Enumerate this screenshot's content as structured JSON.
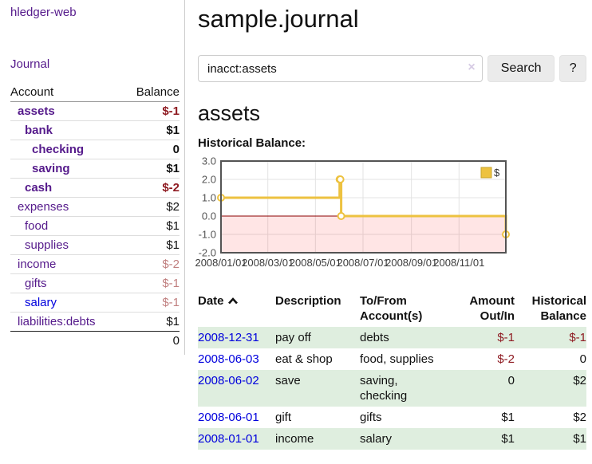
{
  "sidebar": {
    "brand": "hledger-web",
    "journal_link": "Journal",
    "accounts_table": {
      "headers": {
        "account": "Account",
        "balance": "Balance"
      },
      "rows": [
        {
          "name": "assets",
          "depth": 0,
          "balance": "$-1",
          "in_filter": true,
          "balance_class": "neg-strong",
          "link_blue": false
        },
        {
          "name": "bank",
          "depth": 1,
          "balance": "$1",
          "in_filter": true,
          "balance_class": "",
          "link_blue": false
        },
        {
          "name": "checking",
          "depth": 2,
          "balance": "0",
          "in_filter": true,
          "balance_class": "",
          "link_blue": false
        },
        {
          "name": "saving",
          "depth": 2,
          "balance": "$1",
          "in_filter": true,
          "balance_class": "",
          "link_blue": false
        },
        {
          "name": "cash",
          "depth": 1,
          "balance": "$-2",
          "in_filter": true,
          "balance_class": "neg-strong",
          "link_blue": false
        },
        {
          "name": "expenses",
          "depth": 0,
          "balance": "$2",
          "in_filter": false,
          "balance_class": "",
          "link_blue": false
        },
        {
          "name": "food",
          "depth": 1,
          "balance": "$1",
          "in_filter": false,
          "balance_class": "",
          "link_blue": false
        },
        {
          "name": "supplies",
          "depth": 1,
          "balance": "$1",
          "in_filter": false,
          "balance_class": "",
          "link_blue": false
        },
        {
          "name": "income",
          "depth": 0,
          "balance": "$-2",
          "in_filter": false,
          "balance_class": "neg-faded",
          "link_blue": false
        },
        {
          "name": "gifts",
          "depth": 1,
          "balance": "$-1",
          "in_filter": false,
          "balance_class": "neg-faded",
          "link_blue": false
        },
        {
          "name": "salary",
          "depth": 1,
          "balance": "$-1",
          "in_filter": false,
          "balance_class": "neg-faded",
          "link_blue": true
        },
        {
          "name": "liabilities:debts",
          "depth": 0,
          "balance": "$1",
          "in_filter": false,
          "balance_class": "",
          "link_blue": false
        }
      ],
      "total": "0"
    }
  },
  "main": {
    "title": "sample.journal",
    "search": {
      "value": "inacct:assets",
      "clear_icon": "×",
      "button_label": "Search",
      "help_label": "?"
    },
    "account_heading": "assets",
    "chart_label": "Historical Balance:"
  },
  "chart_data": {
    "type": "line",
    "step": true,
    "title": "Historical Balance",
    "series": [
      {
        "name": "$",
        "color": "#edc240",
        "points": [
          [
            "2008-01-01",
            1
          ],
          [
            "2008-06-01",
            2
          ],
          [
            "2008-06-02",
            2
          ],
          [
            "2008-06-03",
            0
          ],
          [
            "2008-12-31",
            -1
          ]
        ]
      }
    ],
    "x_range": [
      "2008-01-01",
      "2008-12-31"
    ],
    "ylim": [
      -2,
      3
    ],
    "yticks": [
      "3.0",
      "2.0",
      "1.0",
      "0.0",
      "-1.0",
      "-2.0"
    ],
    "xticks": [
      "2008/01/01",
      "2008/03/01",
      "2008/05/01",
      "2008/07/01",
      "2008/09/01",
      "2008/11/01"
    ],
    "grid": true,
    "legend_position": "top-right",
    "legend_label": "$",
    "colors": {
      "line": "#edc240",
      "marker_fill": "#ffffff",
      "negative_region_fill": "rgba(255,0,0,0.10)",
      "zero_line": "#8b0000",
      "gridline": "#e3e3e3",
      "border": "#545454",
      "tick_text": "#545454"
    }
  },
  "register": {
    "headers": [
      {
        "label": "Date",
        "sorted": "asc"
      },
      {
        "label": "Description"
      },
      {
        "label": "To/From Account(s)"
      },
      {
        "label": "Amount Out/In",
        "align": "right"
      },
      {
        "label": "Historical Balance",
        "align": "right"
      }
    ],
    "rows": [
      {
        "date": "2008-12-31",
        "description": "pay off",
        "accounts": "debts",
        "amount": "$-1",
        "amount_negative": true,
        "balance": "$-1",
        "balance_negative": true
      },
      {
        "date": "2008-06-03",
        "description": "eat & shop",
        "accounts": "food, supplies",
        "amount": "$-2",
        "amount_negative": true,
        "balance": "0",
        "balance_negative": false
      },
      {
        "date": "2008-06-02",
        "description": "save",
        "accounts": "saving, checking",
        "amount": "0",
        "amount_negative": false,
        "balance": "$2",
        "balance_negative": false
      },
      {
        "date": "2008-06-01",
        "description": "gift",
        "accounts": "gifts",
        "amount": "$1",
        "amount_negative": false,
        "balance": "$2",
        "balance_negative": false
      },
      {
        "date": "2008-01-01",
        "description": "income",
        "accounts": "salary",
        "amount": "$1",
        "amount_negative": false,
        "balance": "$1",
        "balance_negative": false
      }
    ]
  }
}
